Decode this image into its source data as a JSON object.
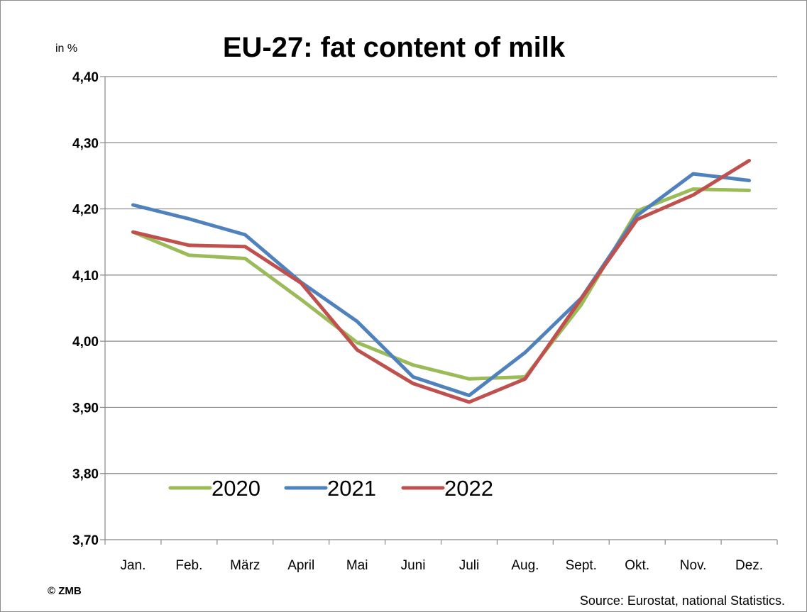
{
  "chart_data": {
    "type": "line",
    "title": "EU-27: fat content of milk",
    "unit_label": "in %",
    "categories": [
      "Jan.",
      "Feb.",
      "März",
      "April",
      "Mai",
      "Juni",
      "Juli",
      "Aug.",
      "Sept.",
      "Okt.",
      "Nov.",
      "Dez."
    ],
    "ylim": [
      3.7,
      4.4
    ],
    "yticks": [
      "3,70",
      "3,80",
      "3,90",
      "4,00",
      "4,10",
      "4,20",
      "4,30",
      "4,40"
    ],
    "ytick_values": [
      3.7,
      3.8,
      3.9,
      4.0,
      4.1,
      4.2,
      4.3,
      4.4
    ],
    "grid": true,
    "legend_position": "bottom-left inside plot",
    "series": [
      {
        "name": "2020",
        "color": "#9bbb59",
        "values": [
          4.165,
          4.13,
          4.125,
          4.063,
          3.998,
          3.964,
          3.943,
          3.946,
          4.055,
          4.197,
          4.23,
          4.228
        ]
      },
      {
        "name": "2021",
        "color": "#4f81bd",
        "values": [
          4.206,
          4.185,
          4.161,
          4.089,
          4.03,
          3.946,
          3.918,
          3.983,
          4.065,
          4.19,
          4.253,
          4.243
        ]
      },
      {
        "name": "2022",
        "color": "#c0504d",
        "values": [
          4.165,
          4.145,
          4.143,
          4.088,
          3.987,
          3.936,
          3.908,
          3.943,
          4.064,
          4.184,
          4.221,
          4.273
        ]
      }
    ]
  },
  "footer": {
    "copyright": "© ZMB",
    "source": "Source: Eurostat, national Statistics."
  }
}
